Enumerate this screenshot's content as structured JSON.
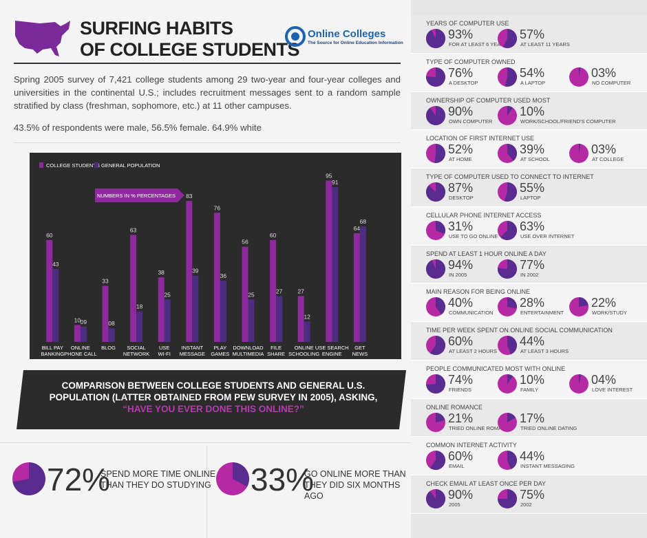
{
  "header": {
    "title_lines": [
      "SURFING HABITS",
      "OF COLLEGE STUDENTS"
    ],
    "logo": "Online Colleges",
    "tagline": "The Source for Online Education Information"
  },
  "intro": {
    "description": "Spring 2005 survey of 7,421 college students among 29 two-year and four-year colleges and universities in the continental U.S.; includes recruitment messages sent to a random sample stratified by class (freshman, sophomore, etc.) at 11 other campuses.",
    "demographics": "43.5% of respondents were male, 56.5% female. 64.9% white"
  },
  "chart_data": {
    "type": "bar",
    "annotation": "NUMBERS IN % PERCENTAGES",
    "categories": [
      "BILL PAY\nBANKING",
      "ONLINE\nPHONE CALL",
      "BLOG",
      "SOCIAL\nNETWORK",
      "USE\nWI-FI",
      "INSTANT\nMESSAGE",
      "PLAY\nGAMES",
      "DOWNLOAD\nMULTIMEDIA",
      "FILE\nSHARE",
      "ONLINE\nSCHOOLING",
      "USE SEARCH\nENGINE",
      "GET\nNEWS"
    ],
    "series": [
      {
        "name": "COLLEGE STUDENTS",
        "color": "#8f2a9e",
        "values": [
          60,
          10,
          33,
          63,
          38,
          83,
          76,
          56,
          60,
          27,
          95,
          64
        ]
      },
      {
        "name": "GENERAL POPULATION",
        "color": "#4d2d82",
        "values": [
          43,
          9,
          8,
          18,
          25,
          39,
          36,
          25,
          27,
          12,
          91,
          68
        ],
        "value_labels": [
          "43",
          "09",
          "08",
          "18",
          "25",
          "39",
          "36",
          "25",
          "27",
          "12",
          "91",
          "68"
        ]
      }
    ],
    "ylim": [
      0,
      100
    ],
    "grid": false
  },
  "caption": {
    "text": "COMPARISON BETWEEN COLLEGE STUDENTS AND GENERAL U.S. POPULATION (LATTER OBTAINED FROM PEW SURVEY IN 2005), ASKING,",
    "question": "“HAVE YOU EVER DONE THIS ONLINE?”"
  },
  "stats": [
    {
      "value": 72,
      "value_label": "72%",
      "label": "SPEND MORE TIME ONLINE\nTHAN THEY DO STUDYING"
    },
    {
      "value": 33,
      "value_label": "33%",
      "label": "GO ONLINE MORE THAN\nTHEY DID SIX MONTHS AGO"
    }
  ],
  "panels": [
    {
      "title": "YEARS OF COMPUTER USE",
      "items": [
        {
          "value": 93,
          "value_label": "93%",
          "label": "FOR AT LEAST 6 YEARS"
        },
        {
          "value": 57,
          "value_label": "57%",
          "label": "AT LEAST 11 YEARS"
        }
      ]
    },
    {
      "title": "TYPE OF COMPUTER OWNED",
      "items": [
        {
          "value": 76,
          "value_label": "76%",
          "label": "A DESKTOP"
        },
        {
          "value": 54,
          "value_label": "54%",
          "label": "A LAPTOP"
        },
        {
          "value": 3,
          "value_label": "03%",
          "label": "NO COMPUTER"
        }
      ]
    },
    {
      "title": "OWNERSHIP OF COMPUTER USED MOST",
      "items": [
        {
          "value": 90,
          "value_label": "90%",
          "label": "OWN COMPUTER"
        },
        {
          "value": 10,
          "value_label": "10%",
          "label": "WORK/SCHOOL/FRIEND'S COMPUTER"
        }
      ]
    },
    {
      "title": "LOCATION OF FIRST INTERNET USE",
      "items": [
        {
          "value": 52,
          "value_label": "52%",
          "label": "AT HOME"
        },
        {
          "value": 39,
          "value_label": "39%",
          "label": "AT SCHOOL"
        },
        {
          "value": 3,
          "value_label": "03%",
          "label": "AT COLLEGE"
        }
      ]
    },
    {
      "title": "TYPE OF COMPUTER USED TO CONNECT TO INTERNET",
      "items": [
        {
          "value": 87,
          "value_label": "87%",
          "label": "DESKTOP"
        },
        {
          "value": 55,
          "value_label": "55%",
          "label": "LAPTOP"
        }
      ]
    },
    {
      "title": "CELLULAR PHONE INTERNET ACCESS",
      "items": [
        {
          "value": 31,
          "value_label": "31%",
          "label": "USE TO GO ONLINE"
        },
        {
          "value": 63,
          "value_label": "63%",
          "label": "USE OVER INTERNET"
        }
      ]
    },
    {
      "title": "SPEND AT LEAST 1 HOUR ONLINE A DAY",
      "items": [
        {
          "value": 94,
          "value_label": "94%",
          "label": "IN 2005"
        },
        {
          "value": 77,
          "value_label": "77%",
          "label": "IN 2002"
        }
      ]
    },
    {
      "title": "MAIN REASON FOR BEING ONLINE",
      "items": [
        {
          "value": 40,
          "value_label": "40%",
          "label": "COMMUNICATION"
        },
        {
          "value": 28,
          "value_label": "28%",
          "label": "ENTERTAINMENT"
        },
        {
          "value": 22,
          "value_label": "22%",
          "label": "WORK/STUDY"
        }
      ]
    },
    {
      "title": "TIME PER WEEK SPENT ON ONLINE SOCIAL COMMUNICATION",
      "items": [
        {
          "value": 60,
          "value_label": "60%",
          "label": "AT LEAST 2 HOURS"
        },
        {
          "value": 44,
          "value_label": "44%",
          "label": "AT LEAST 3 HOURS"
        }
      ]
    },
    {
      "title": "PEOPLE COMMUNICATED MOST WITH ONLINE",
      "items": [
        {
          "value": 74,
          "value_label": "74%",
          "label": "FRIENDS"
        },
        {
          "value": 10,
          "value_label": "10%",
          "label": "FAMILY"
        },
        {
          "value": 4,
          "value_label": "04%",
          "label": "LOVE INTEREST"
        }
      ]
    },
    {
      "title": "ONLINE ROMANCE",
      "items": [
        {
          "value": 21,
          "value_label": "21%",
          "label": "TRIED ONLINE ROMANCE"
        },
        {
          "value": 17,
          "value_label": "17%",
          "label": "TRIED ONLINE DATING"
        }
      ]
    },
    {
      "title": "COMMON INTERNET ACTIVITY",
      "items": [
        {
          "value": 60,
          "value_label": "60%",
          "label": "EMAIL"
        },
        {
          "value": 44,
          "value_label": "44%",
          "label": "INSTANT MESSAGING"
        }
      ]
    },
    {
      "title": "CHECK EMAIL AT LEAST ONCE PER DAY",
      "items": [
        {
          "value": 90,
          "value_label": "90%",
          "label": "2005"
        },
        {
          "value": 75,
          "value_label": "75%",
          "label": "2002"
        }
      ]
    }
  ]
}
